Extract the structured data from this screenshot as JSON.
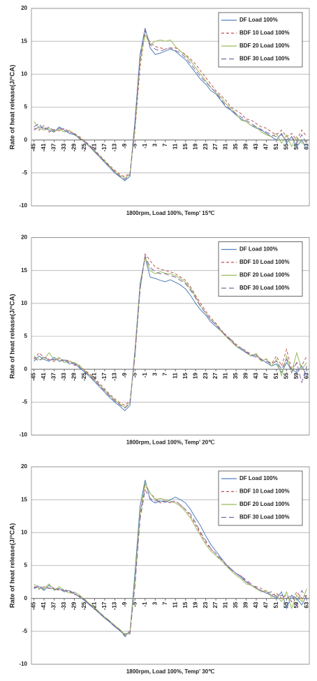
{
  "chart_data": [
    {
      "type": "line",
      "xlabel": "1800rpm, Load 100%, Temp' 15℃",
      "ylabel": "Rate of heat release(J/°CA)",
      "x": [
        -45,
        -43,
        -41,
        -39,
        -37,
        -35,
        -33,
        -31,
        -29,
        -27,
        -25,
        -23,
        -21,
        -19,
        -17,
        -15,
        -13,
        -11,
        -9,
        -7,
        -5,
        -3,
        -1,
        1,
        3,
        5,
        7,
        9,
        11,
        13,
        15,
        17,
        19,
        21,
        23,
        25,
        27,
        29,
        31,
        33,
        35,
        37,
        39,
        41,
        43,
        45,
        47,
        49,
        51,
        53,
        55,
        57,
        59,
        61,
        63
      ],
      "xlim": [
        -46,
        64
      ],
      "xticks": [
        -45,
        -41,
        -37,
        -33,
        -29,
        -25,
        -21,
        -17,
        -13,
        -9,
        -5,
        -1,
        3,
        7,
        11,
        15,
        19,
        23,
        27,
        31,
        35,
        39,
        43,
        47,
        51,
        55,
        59,
        63
      ],
      "ylim": [
        -10,
        20
      ],
      "yticks": [
        -10,
        -5,
        0,
        5,
        10,
        15,
        20
      ],
      "grid": true,
      "legend": "upper right",
      "series": [
        {
          "name": "DF Load 100%",
          "color": "#4f81bd",
          "dash": "none",
          "values": [
            1.5,
            2,
            1.8,
            1.5,
            1.2,
            2,
            1.5,
            1,
            0.8,
            0.3,
            -0.3,
            -1,
            -1.8,
            -2.6,
            -3.4,
            -4.2,
            -5,
            -5.6,
            -6.2,
            -5.5,
            3,
            13,
            17,
            14,
            13,
            13.2,
            13.5,
            13.8,
            13.5,
            12.8,
            12.2,
            11.2,
            10.2,
            9.2,
            8.5,
            7.5,
            7,
            6,
            5,
            4.5,
            3.8,
            3.2,
            2.8,
            2.2,
            1.8,
            1.5,
            1,
            0.5,
            0,
            1,
            -0.5,
            0.5,
            -1,
            0,
            -1.5
          ]
        },
        {
          "name": "BDF 10 Load 100%",
          "color": "#c0504d",
          "dash": "4,3",
          "values": [
            1.8,
            1.5,
            2.2,
            1.2,
            1.6,
            1.4,
            1.8,
            1.2,
            1,
            0.5,
            -0.1,
            -0.8,
            -1.5,
            -2.3,
            -3.1,
            -3.9,
            -4.6,
            -5.2,
            -5.6,
            -5,
            1.5,
            11,
            16.5,
            14.8,
            14.2,
            14,
            13.8,
            14,
            14,
            13.5,
            13,
            12.3,
            11.5,
            10.5,
            9.5,
            8.5,
            7.5,
            6.8,
            6,
            5,
            4.5,
            4,
            3.2,
            3,
            2.5,
            2,
            1.8,
            1.2,
            0.8,
            1.5,
            0.5,
            1,
            0,
            1.5,
            0.5
          ]
        },
        {
          "name": "BDF 20 Load 100%",
          "color": "#9bbb59",
          "dash": "none",
          "values": [
            2.8,
            1.8,
            1.5,
            1.8,
            1.3,
            1.6,
            1.2,
            1.5,
            0.9,
            0.4,
            -0.2,
            -0.9,
            -1.6,
            -2.4,
            -3.2,
            -4,
            -4.8,
            -5.4,
            -5.8,
            -5.2,
            2,
            12,
            16,
            14.5,
            15,
            15.2,
            15,
            15.2,
            14.2,
            13.5,
            12.8,
            12,
            11,
            10,
            9,
            8,
            7.2,
            6.5,
            5.5,
            4.8,
            4,
            3,
            2.8,
            2.2,
            2,
            1.2,
            0.8,
            0.5,
            1,
            -0.5,
            0.8,
            -1,
            0.5,
            -0.5,
            0
          ]
        },
        {
          "name": "BDF 30 Load 100%",
          "color": "#8064a2",
          "dash": "7,4",
          "values": [
            2,
            2.5,
            1.5,
            2,
            1.4,
            1.8,
            1.4,
            1.3,
            0.9,
            0.2,
            -0.2,
            -0.9,
            -1.7,
            -2.5,
            -3.3,
            -4.1,
            -4.9,
            -5.5,
            -6,
            -5.3,
            2.5,
            12.5,
            16.8,
            14.5,
            13.8,
            13.5,
            13.8,
            14,
            13.6,
            13.2,
            12.5,
            11.6,
            10.6,
            9.6,
            8.8,
            8,
            7.2,
            6.2,
            5.2,
            4.6,
            4,
            3.5,
            3,
            2.5,
            2,
            1.6,
            1.2,
            0.8,
            0.5,
            0.8,
            0,
            0.5,
            -0.5,
            0.8,
            -0.5
          ]
        }
      ]
    },
    {
      "type": "line",
      "xlabel": "1800rpm, Load 100%, Temp' 20℃",
      "ylabel": "Rate of heat release(J/°CA)",
      "x": [
        -45,
        -43,
        -41,
        -39,
        -37,
        -35,
        -33,
        -31,
        -29,
        -27,
        -25,
        -23,
        -21,
        -19,
        -17,
        -15,
        -13,
        -11,
        -9,
        -7,
        -5,
        -3,
        -1,
        1,
        3,
        5,
        7,
        9,
        11,
        13,
        15,
        17,
        19,
        21,
        23,
        25,
        27,
        29,
        31,
        33,
        35,
        37,
        39,
        41,
        43,
        45,
        47,
        49,
        51,
        53,
        55,
        57,
        59,
        61,
        63
      ],
      "xlim": [
        -46,
        64
      ],
      "xticks": [
        -45,
        -41,
        -37,
        -33,
        -29,
        -25,
        -21,
        -17,
        -13,
        -9,
        -5,
        -1,
        3,
        7,
        11,
        15,
        19,
        23,
        27,
        31,
        35,
        39,
        43,
        47,
        51,
        55,
        59,
        63
      ],
      "ylim": [
        -10,
        20
      ],
      "yticks": [
        -10,
        -5,
        0,
        5,
        10,
        15,
        20
      ],
      "grid": true,
      "legend": "upper right",
      "series": [
        {
          "name": "DF Load 100%",
          "color": "#4f81bd",
          "dash": "none",
          "values": [
            1.2,
            2,
            1.5,
            1.2,
            1.8,
            1.2,
            1.4,
            0.8,
            1,
            0.2,
            -0.4,
            -1.1,
            -1.9,
            -2.7,
            -3.5,
            -4.3,
            -5,
            -5.6,
            -6.3,
            -5.5,
            3,
            13,
            17,
            14,
            13.8,
            13.5,
            13.3,
            13.6,
            13.2,
            12.8,
            12.2,
            11.2,
            10,
            9,
            8.2,
            7.2,
            6.5,
            5.8,
            5,
            4.5,
            3.5,
            3,
            2.5,
            2,
            2.2,
            1.5,
            1,
            0.5,
            0.8,
            -0.5,
            1,
            0,
            -0.5,
            0.5,
            -1
          ]
        },
        {
          "name": "BDF 10 Load 100%",
          "color": "#c0504d",
          "dash": "4,3",
          "values": [
            1.5,
            2.5,
            1.8,
            1.5,
            1.2,
            1.6,
            1.2,
            1.4,
            0.6,
            0.5,
            -0.1,
            -0.7,
            -1.4,
            -2.2,
            -3,
            -3.8,
            -4.5,
            -5.1,
            -5.5,
            -4.8,
            2,
            12,
            17.5,
            16.5,
            15.5,
            15.2,
            15,
            14.8,
            14.5,
            14,
            13.5,
            12.5,
            11.2,
            10,
            8.8,
            7.8,
            7,
            6,
            5.2,
            4.5,
            3.8,
            3.2,
            2.8,
            2.2,
            2,
            1.5,
            1.5,
            0.8,
            2,
            0.5,
            3,
            0,
            1,
            0.5,
            2
          ]
        },
        {
          "name": "BDF 20 Load 100%",
          "color": "#9bbb59",
          "dash": "none",
          "values": [
            2,
            1.5,
            1.5,
            2.5,
            1.4,
            1.8,
            1,
            1.2,
            1,
            0.6,
            -0.2,
            -0.9,
            -1.6,
            -2.4,
            -3.2,
            -4,
            -4.7,
            -5.3,
            -5.8,
            -5.1,
            2.5,
            12.5,
            17,
            15,
            14.5,
            14.8,
            14.6,
            14.5,
            14.2,
            13.8,
            13.2,
            12.2,
            11,
            9.6,
            8.5,
            7.5,
            6.8,
            5.8,
            5,
            4.2,
            3.5,
            3.2,
            2.6,
            2,
            2.4,
            1.2,
            1.6,
            0.5,
            1.5,
            -1,
            2,
            -0.5,
            2.5,
            0,
            1
          ]
        },
        {
          "name": "BDF 30 Load 100%",
          "color": "#8064a2",
          "dash": "7,4",
          "values": [
            1.8,
            1.2,
            2,
            1.3,
            1.5,
            1.2,
            1.6,
            1,
            0.8,
            0.3,
            -0.3,
            -1,
            -1.7,
            -2.5,
            -3.3,
            -4.1,
            -4.8,
            -5.4,
            -5.9,
            -5.2,
            2.2,
            12.2,
            17.2,
            15.5,
            14.8,
            14.5,
            14.5,
            14.2,
            14,
            13.5,
            13,
            12,
            10.8,
            9.5,
            8.5,
            7.5,
            6.8,
            6,
            5,
            4.4,
            3.6,
            3.2,
            2.6,
            2.2,
            1.8,
            1.4,
            1.2,
            0.8,
            1.2,
            0,
            1.5,
            -0.5,
            1,
            -2,
            0.5
          ]
        }
      ]
    },
    {
      "type": "line",
      "xlabel": "1800rpm, Load 100%, Temp' 30℃",
      "ylabel": "Rate of heat release(J/°CA)",
      "x": [
        -45,
        -43,
        -41,
        -39,
        -37,
        -35,
        -33,
        -31,
        -29,
        -27,
        -25,
        -23,
        -21,
        -19,
        -17,
        -15,
        -13,
        -11,
        -9,
        -7,
        -5,
        -3,
        -1,
        1,
        3,
        5,
        7,
        9,
        11,
        13,
        15,
        17,
        19,
        21,
        23,
        25,
        27,
        29,
        31,
        33,
        35,
        37,
        39,
        41,
        43,
        45,
        47,
        49,
        51,
        53,
        55,
        57,
        59,
        61,
        63
      ],
      "xlim": [
        -46,
        64
      ],
      "xticks": [
        -45,
        -41,
        -37,
        -33,
        -29,
        -25,
        -21,
        -17,
        -13,
        -9,
        -5,
        -1,
        3,
        7,
        11,
        15,
        19,
        23,
        27,
        31,
        35,
        39,
        43,
        47,
        51,
        55,
        59,
        63
      ],
      "ylim": [
        -10,
        20
      ],
      "yticks": [
        -10,
        -5,
        0,
        5,
        10,
        15,
        20
      ],
      "grid": true,
      "legend": "upper right",
      "series": [
        {
          "name": "DF Load 100%",
          "color": "#4f81bd",
          "dash": "none",
          "values": [
            1.5,
            1.8,
            1.2,
            2,
            1.4,
            1.5,
            1,
            1.2,
            0.8,
            0.2,
            -0.3,
            -1,
            -1.6,
            -2.3,
            -3,
            -3.6,
            -4.3,
            -4.9,
            -5.6,
            -5.2,
            4,
            14,
            18,
            15,
            14.5,
            14.8,
            14.6,
            15,
            15.4,
            15,
            14.5,
            13.5,
            12.2,
            11,
            9.5,
            8.2,
            7.2,
            6.2,
            5.2,
            4.5,
            3.8,
            3.2,
            2.5,
            2,
            1.5,
            1.2,
            0.8,
            0.5,
            0,
            1,
            -1.5,
            0.5,
            0,
            -1,
            0.5
          ]
        },
        {
          "name": "BDF 10 Load 100%",
          "color": "#c0504d",
          "dash": "4,3",
          "values": [
            1.8,
            1.4,
            1.8,
            1.5,
            1.6,
            1.2,
            1.4,
            1,
            0.6,
            0.4,
            -0.2,
            -0.9,
            -1.5,
            -2.2,
            -2.9,
            -3.5,
            -4.2,
            -4.8,
            -5.4,
            -5,
            2.5,
            12.5,
            17.2,
            16,
            15.2,
            14.5,
            14.8,
            14.5,
            14.8,
            14.2,
            13.5,
            12.5,
            11.2,
            9.8,
            8.5,
            7.5,
            6.8,
            5.8,
            5,
            4.4,
            3.8,
            3.4,
            2.6,
            2,
            1.8,
            1.5,
            1,
            0.5,
            0.8,
            0,
            0.5,
            -0.5,
            1,
            0,
            0.5
          ]
        },
        {
          "name": "BDF 20 Load 100%",
          "color": "#9bbb59",
          "dash": "none",
          "values": [
            2.2,
            1.5,
            1.5,
            2.2,
            1.2,
            1.8,
            1.2,
            0.8,
            1,
            0.5,
            -0.1,
            -0.8,
            -1.4,
            -2.1,
            -2.8,
            -3.4,
            -4.1,
            -4.7,
            -5.5,
            -5.1,
            3,
            13,
            17.5,
            16,
            15,
            15.2,
            15,
            14.8,
            14.5,
            14,
            13.2,
            12.2,
            10.8,
            9.5,
            8.2,
            7.2,
            6.5,
            5.8,
            5,
            4.2,
            3.5,
            3,
            2.2,
            2,
            1.5,
            1,
            1.2,
            0.2,
            0.5,
            -0.5,
            1,
            -1.5,
            0.5,
            -0.5,
            1.5
          ]
        },
        {
          "name": "BDF 30 Load 100%",
          "color": "#8064a2",
          "dash": "7,4",
          "values": [
            1.6,
            2,
            1.4,
            1.6,
            1.3,
            1.4,
            1.2,
            1.1,
            0.7,
            0.3,
            -0.2,
            -0.9,
            -1.5,
            -2.2,
            -2.9,
            -3.5,
            -4.2,
            -4.8,
            -5.8,
            -5.4,
            2,
            12,
            16.5,
            15.2,
            14.8,
            14.8,
            14.8,
            14.6,
            14.8,
            14.2,
            13.5,
            12.8,
            11.5,
            10,
            8.8,
            7.6,
            6.8,
            6,
            5.2,
            4.4,
            3.8,
            3.4,
            2.8,
            2.2,
            1.6,
            1.2,
            0.8,
            1,
            0.2,
            0.5,
            0,
            0.5,
            -1,
            1.2,
            0
          ]
        }
      ]
    }
  ]
}
